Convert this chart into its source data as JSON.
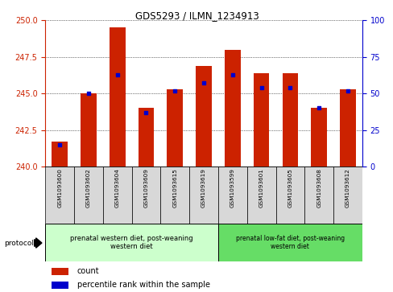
{
  "title": "GDS5293 / ILMN_1234913",
  "samples": [
    "GSM1093600",
    "GSM1093602",
    "GSM1093604",
    "GSM1093609",
    "GSM1093615",
    "GSM1093619",
    "GSM1093599",
    "GSM1093601",
    "GSM1093605",
    "GSM1093608",
    "GSM1093612"
  ],
  "counts": [
    241.7,
    245.0,
    249.5,
    244.0,
    245.3,
    246.9,
    248.0,
    246.4,
    246.4,
    244.0,
    245.3
  ],
  "percentiles": [
    15,
    50,
    63,
    37,
    52,
    57,
    63,
    54,
    54,
    40,
    52
  ],
  "bar_color": "#cc2200",
  "dot_color": "#0000cc",
  "ylim_left": [
    240,
    250
  ],
  "ylim_right": [
    0,
    100
  ],
  "yticks_left": [
    240,
    242.5,
    245,
    247.5,
    250
  ],
  "yticks_right": [
    0,
    25,
    50,
    75,
    100
  ],
  "group1_label": "prenatal western diet, post-weaning\nwestern diet",
  "group2_label": "prenatal low-fat diet, post-weaning\nwestern diet",
  "group1_color": "#ccffcc",
  "group2_color": "#66dd66",
  "protocol_label": "protocol",
  "legend_count": "count",
  "legend_pct": "percentile rank within the sample",
  "col_bg": "#d8d8d8"
}
